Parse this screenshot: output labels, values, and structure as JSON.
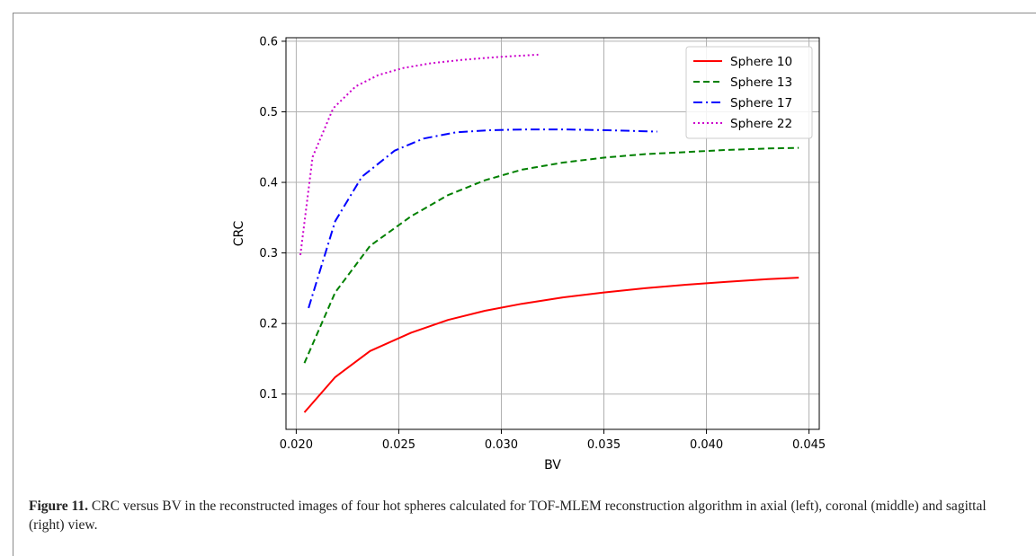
{
  "chart_data": {
    "type": "line",
    "xlabel": "BV",
    "ylabel": "CRC",
    "xlim": [
      0.0195,
      0.0455
    ],
    "ylim": [
      0.05,
      0.605
    ],
    "xticks": [
      "0.020",
      "0.025",
      "0.030",
      "0.035",
      "0.040",
      "0.045"
    ],
    "xtick_values": [
      0.02,
      0.025,
      0.03,
      0.035,
      0.04,
      0.045
    ],
    "yticks": [
      "0.1",
      "0.2",
      "0.3",
      "0.4",
      "0.5",
      "0.6"
    ],
    "ytick_values": [
      0.1,
      0.2,
      0.3,
      0.4,
      0.5,
      0.6
    ],
    "grid": true,
    "legend_position": "top-right",
    "series": [
      {
        "name": "Sphere 10",
        "color": "#ff0000",
        "dash": "solid",
        "x": [
          0.0204,
          0.0219,
          0.0236,
          0.0256,
          0.0274,
          0.0292,
          0.031,
          0.033,
          0.035,
          0.037,
          0.039,
          0.041,
          0.043,
          0.0445
        ],
        "y": [
          0.074,
          0.124,
          0.161,
          0.187,
          0.205,
          0.218,
          0.228,
          0.237,
          0.244,
          0.25,
          0.255,
          0.259,
          0.263,
          0.265
        ]
      },
      {
        "name": "Sphere 13",
        "color": "#008000",
        "dash": "dashed",
        "x": [
          0.0204,
          0.0219,
          0.0236,
          0.0256,
          0.0274,
          0.0292,
          0.031,
          0.033,
          0.035,
          0.037,
          0.039,
          0.041,
          0.043,
          0.0445
        ],
        "y": [
          0.144,
          0.244,
          0.31,
          0.352,
          0.382,
          0.403,
          0.418,
          0.428,
          0.435,
          0.44,
          0.443,
          0.446,
          0.448,
          0.449
        ]
      },
      {
        "name": "Sphere 17",
        "color": "#0000ff",
        "dash": "dashdot",
        "x": [
          0.0206,
          0.0219,
          0.0232,
          0.0248,
          0.0262,
          0.0278,
          0.0295,
          0.0312,
          0.033,
          0.035,
          0.0376
        ],
        "y": [
          0.222,
          0.345,
          0.408,
          0.445,
          0.462,
          0.471,
          0.474,
          0.475,
          0.475,
          0.474,
          0.472
        ]
      },
      {
        "name": "Sphere 22",
        "color": "#cc00cc",
        "dash": "dotted",
        "x": [
          0.0202,
          0.0208,
          0.0218,
          0.0229,
          0.024,
          0.0252,
          0.0266,
          0.0282,
          0.03,
          0.0318
        ],
        "y": [
          0.297,
          0.436,
          0.505,
          0.536,
          0.552,
          0.562,
          0.569,
          0.574,
          0.578,
          0.581
        ]
      }
    ]
  },
  "caption": {
    "label": "Figure 11.",
    "text": " CRC versus BV in the reconstructed images of four hot spheres calculated for TOF-MLEM reconstruction algorithm in axial (left), coronal (middle) and sagittal (right) view."
  }
}
